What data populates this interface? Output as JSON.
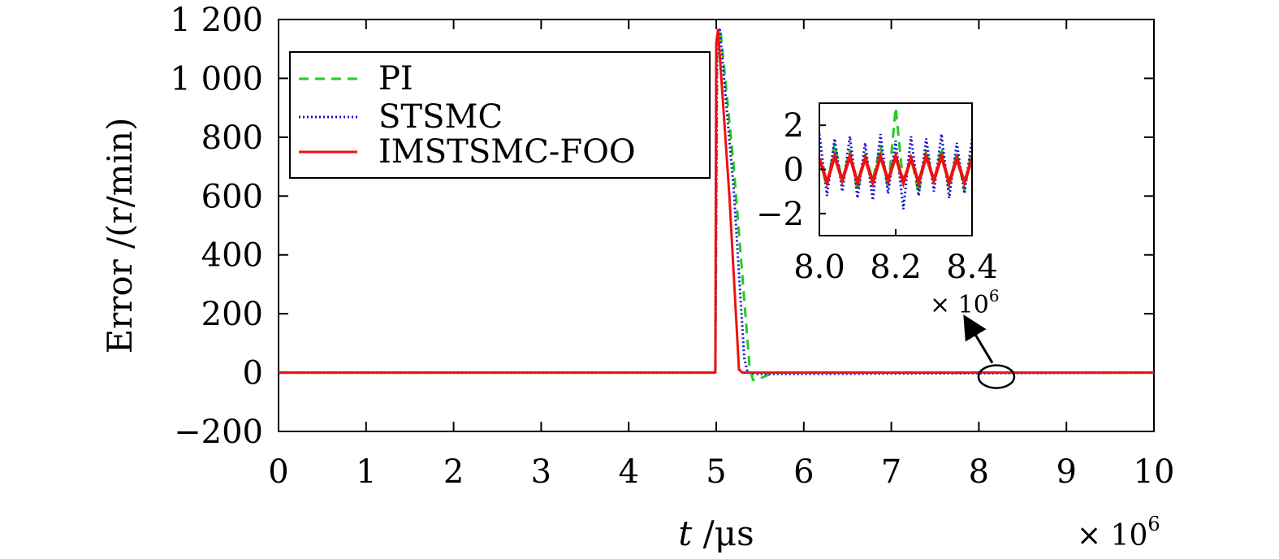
{
  "chart_data": {
    "type": "line",
    "xlabel_italic": "t",
    "xlabel_rest": " /μs",
    "ylabel": "Error /(r/min)",
    "x_multiplier": {
      "base": "× 10",
      "exp": "6"
    },
    "xlim": [
      0,
      10
    ],
    "ylim": [
      -200,
      1200
    ],
    "xticks": [
      0,
      1,
      2,
      3,
      4,
      5,
      6,
      7,
      8,
      9,
      10
    ],
    "xtick_labels": [
      "0",
      "1",
      "2",
      "3",
      "4",
      "5",
      "6",
      "7",
      "8",
      "9",
      "10"
    ],
    "yticks": [
      -200,
      0,
      200,
      400,
      600,
      800,
      1000,
      1200
    ],
    "ytick_labels": [
      "−200",
      "0",
      "200",
      "400",
      "600",
      "800",
      "1 000",
      "1 200"
    ],
    "legend_position": "top-left",
    "series": [
      {
        "name": "PI",
        "color": "#22cc22",
        "dash": "dashed",
        "x": [
          0,
          4.99,
          5.01,
          5.05,
          5.2,
          5.38,
          5.42,
          5.5,
          5.65,
          10
        ],
        "y": [
          0,
          0,
          1130,
          1160,
          700,
          20,
          -25,
          -20,
          0,
          0
        ]
      },
      {
        "name": "STSMC",
        "color": "#1515cc",
        "dash": "dotted",
        "x": [
          0,
          4.99,
          5.01,
          5.04,
          5.2,
          5.32,
          5.36,
          5.45,
          10
        ],
        "y": [
          0,
          0,
          1140,
          1165,
          620,
          50,
          0,
          -5,
          0
        ]
      },
      {
        "name": "IMSTSMC-FOO",
        "color": "#ee1111",
        "dash": "solid",
        "x": [
          0,
          4.99,
          5.0,
          5.02,
          5.15,
          5.26,
          5.3,
          10
        ],
        "y": [
          0,
          0,
          1120,
          1165,
          600,
          10,
          0,
          0
        ]
      }
    ],
    "inset": {
      "xlim": [
        8.0,
        8.4
      ],
      "ylim": [
        -3,
        3
      ],
      "xticks": [
        8.0,
        8.2,
        8.4
      ],
      "xtick_labels": [
        "8.0",
        "8.2",
        "8.4"
      ],
      "yticks": [
        -2,
        0,
        2
      ],
      "ytick_labels": [
        "−2",
        "0",
        "2"
      ],
      "x_multiplier": {
        "base": "× 10",
        "exp": "6"
      },
      "x": [
        8.0,
        8.02,
        8.04,
        8.06,
        8.08,
        8.1,
        8.12,
        8.14,
        8.16,
        8.18,
        8.2,
        8.22,
        8.24,
        8.26,
        8.28,
        8.3,
        8.32,
        8.34,
        8.36,
        8.38,
        8.4
      ],
      "series": [
        {
          "name": "PI",
          "y": [
            0.5,
            -0.8,
            1.2,
            -0.6,
            0.9,
            -1.0,
            0.7,
            -0.5,
            1.1,
            -0.9,
            2.8,
            -0.7,
            0.6,
            -1.1,
            0.9,
            -0.6,
            1.0,
            -0.9,
            0.8,
            -1.0,
            1.0
          ]
        },
        {
          "name": "STSMC",
          "y": [
            1.6,
            -1.2,
            1.4,
            -1.0,
            1.5,
            -1.3,
            1.2,
            -1.4,
            1.6,
            -1.1,
            1.3,
            -1.8,
            1.5,
            -1.2,
            1.4,
            -1.0,
            1.6,
            -1.3,
            1.2,
            -1.1,
            1.4
          ]
        },
        {
          "name": "IMSTSMC-FOO",
          "y": [
            0.5,
            -0.6,
            0.6,
            -0.5,
            0.6,
            -0.6,
            0.5,
            -0.6,
            0.6,
            -0.5,
            0.6,
            -0.6,
            0.5,
            -0.6,
            0.6,
            -0.5,
            0.6,
            -0.6,
            0.5,
            -0.6,
            0.5
          ]
        }
      ]
    },
    "zoom_marker": {
      "x": 8.2,
      "y": 0
    }
  }
}
